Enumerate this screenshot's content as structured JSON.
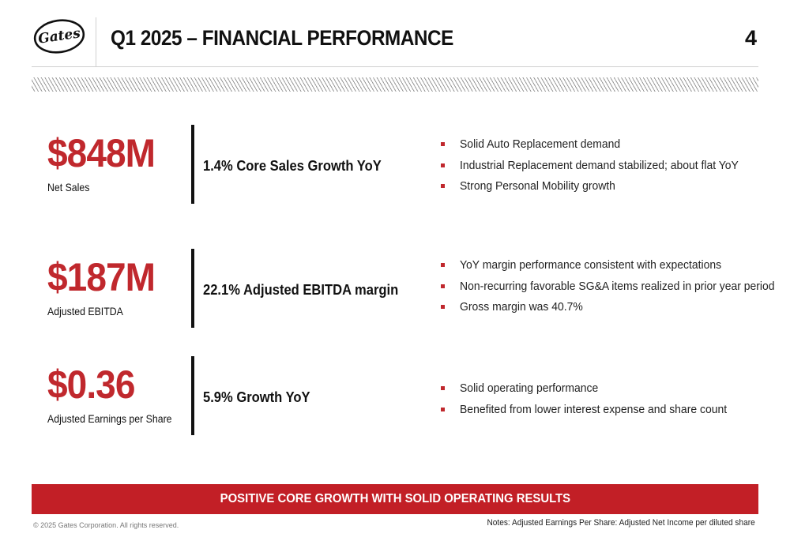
{
  "header": {
    "logo_text": "Gates",
    "title": "Q1 2025 – FINANCIAL PERFORMANCE",
    "page_number": "4"
  },
  "metrics": [
    {
      "value": "$848M",
      "label": "Net Sales",
      "highlight": "1.4% Core Sales Growth YoY",
      "bullets": [
        "Solid Auto Replacement demand",
        "Industrial Replacement demand stabilized; about flat YoY",
        "Strong Personal Mobility growth"
      ]
    },
    {
      "value": "$187M",
      "label": "Adjusted EBITDA",
      "highlight": "22.1% Adjusted EBITDA margin",
      "bullets": [
        "YoY margin performance consistent with expectations",
        "Non-recurring favorable SG&A items realized in prior year period",
        "Gross margin was 40.7%"
      ]
    },
    {
      "value": "$0.36",
      "label": "Adjusted Earnings per Share",
      "highlight": "5.9% Growth YoY",
      "bullets": [
        "Solid operating performance",
        "Benefited from lower interest expense and share count"
      ]
    }
  ],
  "banner": "POSITIVE CORE GROWTH WITH SOLID OPERATING RESULTS",
  "footer": {
    "copyright": "© 2025 Gates Corporation. All rights reserved.",
    "note": "Notes: Adjusted Earnings Per Share: Adjusted Net Income per diluted share"
  },
  "colors": {
    "accent_red": "#c0282d",
    "banner_red": "#c21f26",
    "text": "#111111"
  }
}
